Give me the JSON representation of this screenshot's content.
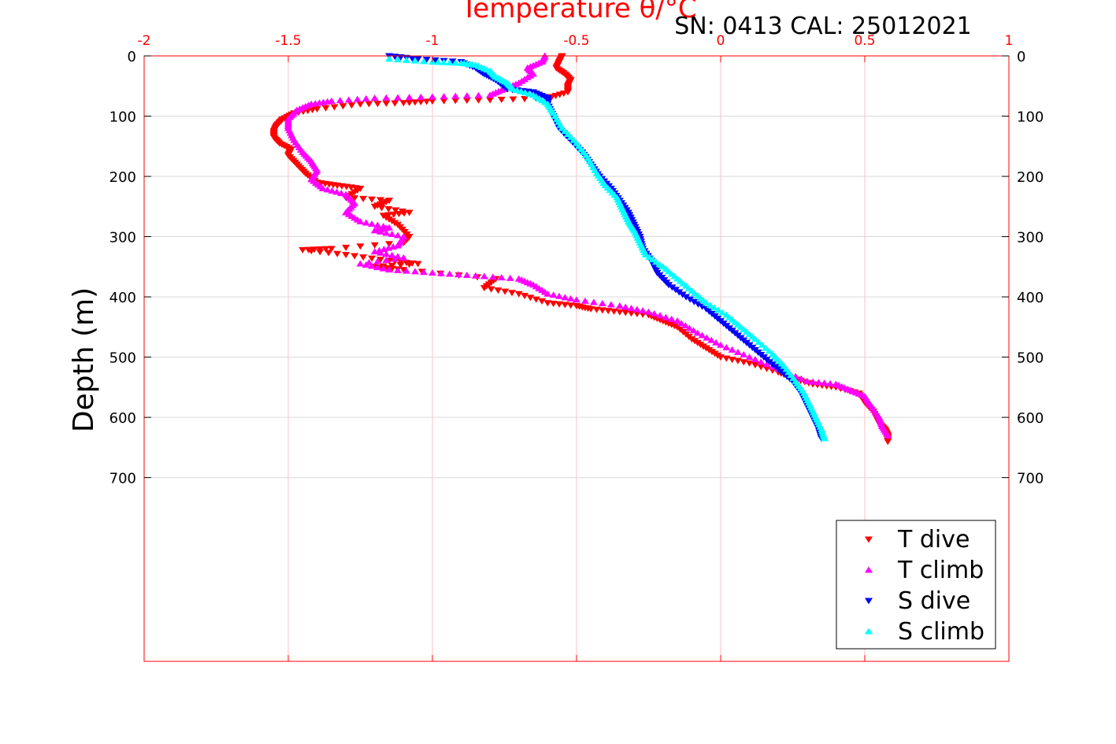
{
  "chart_data": {
    "type": "scatter",
    "title": "Temperature θ/°C",
    "subtitle": "SN: 0413  CAL: 25012021",
    "ylabel": "Depth (m)",
    "xlim": [
      -2,
      1
    ],
    "ylim": [
      0,
      1005
    ],
    "y_reversed": true,
    "x_ticks": [
      "-2",
      "-1.5",
      "-1",
      "-0.5",
      "0",
      "0.5",
      "1"
    ],
    "y_ticks": [
      "0",
      "100",
      "200",
      "300",
      "400",
      "500",
      "600",
      "700"
    ],
    "grid": true,
    "legend_position": "bottom-right",
    "colors": {
      "axis": "#ff0000",
      "grid": "#ffc0c0",
      "hgrid": "#d9d9d9"
    },
    "series": [
      {
        "name": "T dive",
        "color": "#ff0000",
        "marker": "triangle-down",
        "points": [
          [
            -0.55,
            0
          ],
          [
            -0.56,
            10
          ],
          [
            -0.57,
            20
          ],
          [
            -0.54,
            30
          ],
          [
            -0.52,
            40
          ],
          [
            -0.53,
            50
          ],
          [
            -0.53,
            60
          ],
          [
            -0.6,
            70
          ],
          [
            -0.8,
            73
          ],
          [
            -1.0,
            75
          ],
          [
            -1.1,
            78
          ],
          [
            -1.25,
            80
          ],
          [
            -1.4,
            88
          ],
          [
            -1.48,
            95
          ],
          [
            -1.52,
            105
          ],
          [
            -1.54,
            115
          ],
          [
            -1.55,
            125
          ],
          [
            -1.55,
            135
          ],
          [
            -1.53,
            145
          ],
          [
            -1.49,
            155
          ],
          [
            -1.5,
            165
          ],
          [
            -1.47,
            180
          ],
          [
            -1.44,
            195
          ],
          [
            -1.4,
            210
          ],
          [
            -1.33,
            215
          ],
          [
            -1.25,
            220
          ],
          [
            -1.3,
            235
          ],
          [
            -1.15,
            240
          ],
          [
            -1.2,
            250
          ],
          [
            -1.08,
            260
          ],
          [
            -1.17,
            265
          ],
          [
            -1.12,
            280
          ],
          [
            -1.08,
            300
          ],
          [
            -1.1,
            310
          ],
          [
            -1.35,
            320
          ],
          [
            -1.45,
            322
          ],
          [
            -1.3,
            330
          ],
          [
            -1.15,
            340
          ],
          [
            -1.05,
            345
          ],
          [
            -1.2,
            350
          ],
          [
            -1.1,
            355
          ],
          [
            -0.78,
            370
          ],
          [
            -0.82,
            385
          ],
          [
            -0.7,
            395
          ],
          [
            -0.6,
            410
          ],
          [
            -0.5,
            415
          ],
          [
            -0.45,
            420
          ],
          [
            -0.35,
            425
          ],
          [
            -0.25,
            430
          ],
          [
            -0.2,
            440
          ],
          [
            -0.15,
            450
          ],
          [
            -0.1,
            470
          ],
          [
            -0.05,
            485
          ],
          [
            0.0,
            500
          ],
          [
            0.1,
            510
          ],
          [
            0.2,
            525
          ],
          [
            0.25,
            535
          ],
          [
            0.32,
            545
          ],
          [
            0.4,
            550
          ],
          [
            0.48,
            560
          ],
          [
            0.5,
            575
          ],
          [
            0.53,
            590
          ],
          [
            0.55,
            610
          ],
          [
            0.57,
            620
          ],
          [
            0.58,
            630
          ],
          [
            0.58,
            640
          ]
        ]
      },
      {
        "name": "T climb",
        "color": "#ff00ff",
        "marker": "triangle-up",
        "points": [
          [
            -0.61,
            0
          ],
          [
            -0.62,
            10
          ],
          [
            -0.67,
            20
          ],
          [
            -0.65,
            30
          ],
          [
            -0.7,
            45
          ],
          [
            -0.75,
            55
          ],
          [
            -0.8,
            65
          ],
          [
            -1.0,
            68
          ],
          [
            -1.2,
            70
          ],
          [
            -1.35,
            75
          ],
          [
            -1.42,
            80
          ],
          [
            -1.47,
            90
          ],
          [
            -1.5,
            105
          ],
          [
            -1.5,
            120
          ],
          [
            -1.48,
            140
          ],
          [
            -1.45,
            160
          ],
          [
            -1.42,
            175
          ],
          [
            -1.4,
            190
          ],
          [
            -1.42,
            205
          ],
          [
            -1.38,
            220
          ],
          [
            -1.3,
            230
          ],
          [
            -1.27,
            245
          ],
          [
            -1.3,
            260
          ],
          [
            -1.25,
            275
          ],
          [
            -1.15,
            285
          ],
          [
            -1.2,
            290
          ],
          [
            -1.1,
            300
          ],
          [
            -1.12,
            315
          ],
          [
            -1.2,
            325
          ],
          [
            -1.1,
            335
          ],
          [
            -1.25,
            345
          ],
          [
            -1.15,
            355
          ],
          [
            -1.0,
            360
          ],
          [
            -0.85,
            365
          ],
          [
            -0.7,
            370
          ],
          [
            -0.65,
            380
          ],
          [
            -0.6,
            395
          ],
          [
            -0.5,
            405
          ],
          [
            -0.35,
            415
          ],
          [
            -0.25,
            425
          ],
          [
            -0.15,
            440
          ],
          [
            -0.08,
            460
          ],
          [
            0.0,
            480
          ],
          [
            0.1,
            500
          ],
          [
            0.2,
            520
          ],
          [
            0.3,
            540
          ],
          [
            0.4,
            545
          ],
          [
            0.45,
            555
          ],
          [
            0.5,
            565
          ],
          [
            0.52,
            580
          ],
          [
            0.55,
            600
          ],
          [
            0.56,
            615
          ],
          [
            0.58,
            630
          ]
        ]
      },
      {
        "name": "S dive",
        "color": "#0000ff",
        "marker": "triangle-down",
        "points": [
          [
            -1.15,
            0
          ],
          [
            -1.05,
            5
          ],
          [
            -0.9,
            10
          ],
          [
            -0.85,
            20
          ],
          [
            -0.82,
            30
          ],
          [
            -0.78,
            40
          ],
          [
            -0.74,
            55
          ],
          [
            -0.65,
            60
          ],
          [
            -0.6,
            70
          ],
          [
            -0.6,
            80
          ],
          [
            -0.58,
            100
          ],
          [
            -0.56,
            120
          ],
          [
            -0.52,
            140
          ],
          [
            -0.48,
            160
          ],
          [
            -0.45,
            180
          ],
          [
            -0.42,
            200
          ],
          [
            -0.38,
            220
          ],
          [
            -0.35,
            240
          ],
          [
            -0.32,
            260
          ],
          [
            -0.3,
            280
          ],
          [
            -0.28,
            300
          ],
          [
            -0.27,
            320
          ],
          [
            -0.24,
            340
          ],
          [
            -0.22,
            360
          ],
          [
            -0.18,
            380
          ],
          [
            -0.12,
            400
          ],
          [
            -0.05,
            420
          ],
          [
            0.0,
            440
          ],
          [
            0.05,
            460
          ],
          [
            0.1,
            480
          ],
          [
            0.15,
            500
          ],
          [
            0.2,
            520
          ],
          [
            0.25,
            540
          ],
          [
            0.28,
            560
          ],
          [
            0.3,
            580
          ],
          [
            0.32,
            600
          ],
          [
            0.34,
            620
          ],
          [
            0.35,
            635
          ]
        ]
      },
      {
        "name": "S climb",
        "color": "#00ffff",
        "marker": "triangle-up",
        "points": [
          [
            -1.15,
            5
          ],
          [
            -1.0,
            10
          ],
          [
            -0.9,
            12
          ],
          [
            -0.85,
            15
          ],
          [
            -0.8,
            25
          ],
          [
            -0.78,
            35
          ],
          [
            -0.74,
            45
          ],
          [
            -0.72,
            55
          ],
          [
            -0.65,
            65
          ],
          [
            -0.6,
            80
          ],
          [
            -0.58,
            95
          ],
          [
            -0.55,
            120
          ],
          [
            -0.5,
            145
          ],
          [
            -0.46,
            170
          ],
          [
            -0.43,
            195
          ],
          [
            -0.4,
            215
          ],
          [
            -0.36,
            235
          ],
          [
            -0.34,
            255
          ],
          [
            -0.32,
            275
          ],
          [
            -0.3,
            290
          ],
          [
            -0.28,
            310
          ],
          [
            -0.26,
            330
          ],
          [
            -0.2,
            350
          ],
          [
            -0.15,
            370
          ],
          [
            -0.1,
            390
          ],
          [
            -0.05,
            410
          ],
          [
            0.02,
            430
          ],
          [
            0.07,
            450
          ],
          [
            0.12,
            470
          ],
          [
            0.18,
            495
          ],
          [
            0.22,
            515
          ],
          [
            0.26,
            540
          ],
          [
            0.29,
            560
          ],
          [
            0.31,
            580
          ],
          [
            0.33,
            600
          ],
          [
            0.35,
            620
          ],
          [
            0.36,
            635
          ]
        ]
      }
    ]
  }
}
